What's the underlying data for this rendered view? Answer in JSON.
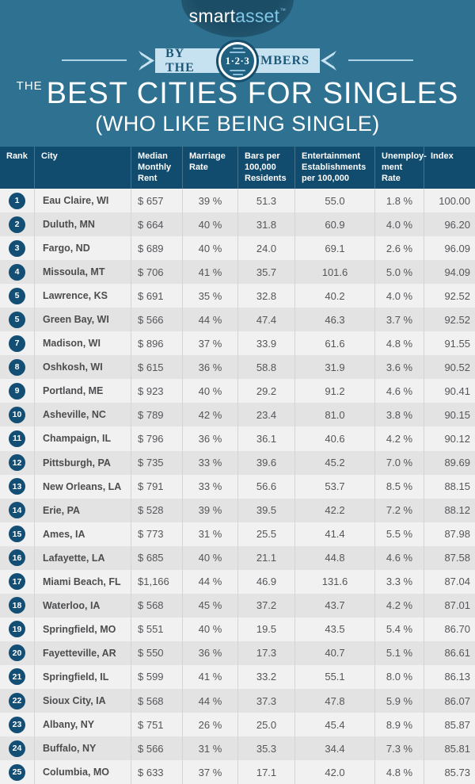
{
  "header": {
    "logo": {
      "part1": "smart",
      "part2": "asset",
      "tm": "™"
    },
    "ribbon": {
      "left": "BY THE",
      "badge": "1·2·3",
      "right": "NUMBERS"
    },
    "title": {
      "the": "THE",
      "main": "BEST CITIES FOR SINGLES",
      "sub": "(WHO LIKE BEING SINGLE)"
    }
  },
  "colors": {
    "background": "#2e7191",
    "header_navy": "#114b6e",
    "ribbon_blue": "#c6e2f0",
    "ribbon_text": "#1d5878",
    "row_light": "#f1f1f1",
    "row_dark": "#e3e3e3",
    "rank_badge_navy": "#134e74",
    "logo_asset_blue": "#7fc6e8",
    "cell_text": "#55565a"
  },
  "chart_data": {
    "type": "table",
    "title": "The Best Cities for Singles (Who Like Being Single)",
    "columns": [
      "Rank",
      "City",
      "Median Monthly Rent",
      "Marriage Rate",
      "Bars per 100,000 Residents",
      "Entertainment Establishments per 100,000",
      "Unemploy-ment Rate",
      "Index"
    ],
    "rows": [
      [
        "1",
        "Eau Claire, WI",
        "$ 657",
        "39 %",
        "51.3",
        "55.0",
        "1.8 %",
        "100.00"
      ],
      [
        "2",
        "Duluth, MN",
        "$ 664",
        "40 %",
        "31.8",
        "60.9",
        "4.0 %",
        "96.20"
      ],
      [
        "3",
        "Fargo, ND",
        "$ 689",
        "40 %",
        "24.0",
        "69.1",
        "2.6 %",
        "96.09"
      ],
      [
        "4",
        "Missoula, MT",
        "$ 706",
        "41 %",
        "35.7",
        "101.6",
        "5.0 %",
        "94.09"
      ],
      [
        "5",
        "Lawrence, KS",
        "$ 691",
        "35 %",
        "32.8",
        "40.2",
        "4.0 %",
        "92.52"
      ],
      [
        "5",
        "Green Bay, WI",
        "$ 566",
        "44 %",
        "47.4",
        "46.3",
        "3.7 %",
        "92.52"
      ],
      [
        "7",
        "Madison, WI",
        "$ 896",
        "37 %",
        "33.9",
        "61.6",
        "4.8 %",
        "91.55"
      ],
      [
        "8",
        "Oshkosh, WI",
        "$ 615",
        "36 %",
        "58.8",
        "31.9",
        "3.6 %",
        "90.52"
      ],
      [
        "9",
        "Portland, ME",
        "$ 923",
        "40 %",
        "29.2",
        "91.2",
        "4.6 %",
        "90.41"
      ],
      [
        "10",
        "Asheville, NC",
        "$ 789",
        "42 %",
        "23.4",
        "81.0",
        "3.8 %",
        "90.15"
      ],
      [
        "11",
        "Champaign, IL",
        "$ 796",
        "36 %",
        "36.1",
        "40.6",
        "4.2 %",
        "90.12"
      ],
      [
        "12",
        "Pittsburgh, PA",
        "$ 735",
        "33 %",
        "39.6",
        "45.2",
        "7.0 %",
        "89.69"
      ],
      [
        "13",
        "New Orleans, LA",
        "$ 791",
        "33 %",
        "56.6",
        "53.7",
        "8.5 %",
        "88.15"
      ],
      [
        "14",
        "Erie, PA",
        "$ 528",
        "39 %",
        "39.5",
        "42.2",
        "7.2 %",
        "88.12"
      ],
      [
        "15",
        "Ames, IA",
        "$ 773",
        "31 %",
        "25.5",
        "41.4",
        "5.5 %",
        "87.98"
      ],
      [
        "16",
        "Lafayette, LA",
        "$ 685",
        "40 %",
        "21.1",
        "44.8",
        "4.6 %",
        "87.58"
      ],
      [
        "17",
        "Miami Beach, FL",
        "$1,166",
        "44 %",
        "46.9",
        "131.6",
        "3.3 %",
        "87.04"
      ],
      [
        "18",
        "Waterloo, IA",
        "$ 568",
        "45 %",
        "37.2",
        "43.7",
        "4.2 %",
        "87.01"
      ],
      [
        "19",
        "Springfield, MO",
        "$ 551",
        "40 %",
        "19.5",
        "43.5",
        "5.4 %",
        "86.70"
      ],
      [
        "20",
        "Fayetteville, AR",
        "$ 550",
        "36 %",
        "17.3",
        "40.7",
        "5.1 %",
        "86.61"
      ],
      [
        "21",
        "Springfield, IL",
        "$ 599",
        "41 %",
        "33.2",
        "55.1",
        "8.0 %",
        "86.13"
      ],
      [
        "22",
        "Sioux City, IA",
        "$ 568",
        "44 %",
        "37.3",
        "47.8",
        "5.9 %",
        "86.07"
      ],
      [
        "23",
        "Albany, NY",
        "$ 751",
        "26 %",
        "25.0",
        "45.4",
        "8.9 %",
        "85.87"
      ],
      [
        "24",
        "Buffalo, NY",
        "$ 566",
        "31 %",
        "35.3",
        "34.4",
        "7.3 %",
        "85.81"
      ],
      [
        "25",
        "Columbia, MO",
        "$ 633",
        "37 %",
        "17.1",
        "42.0",
        "4.8 %",
        "85.73"
      ]
    ]
  }
}
